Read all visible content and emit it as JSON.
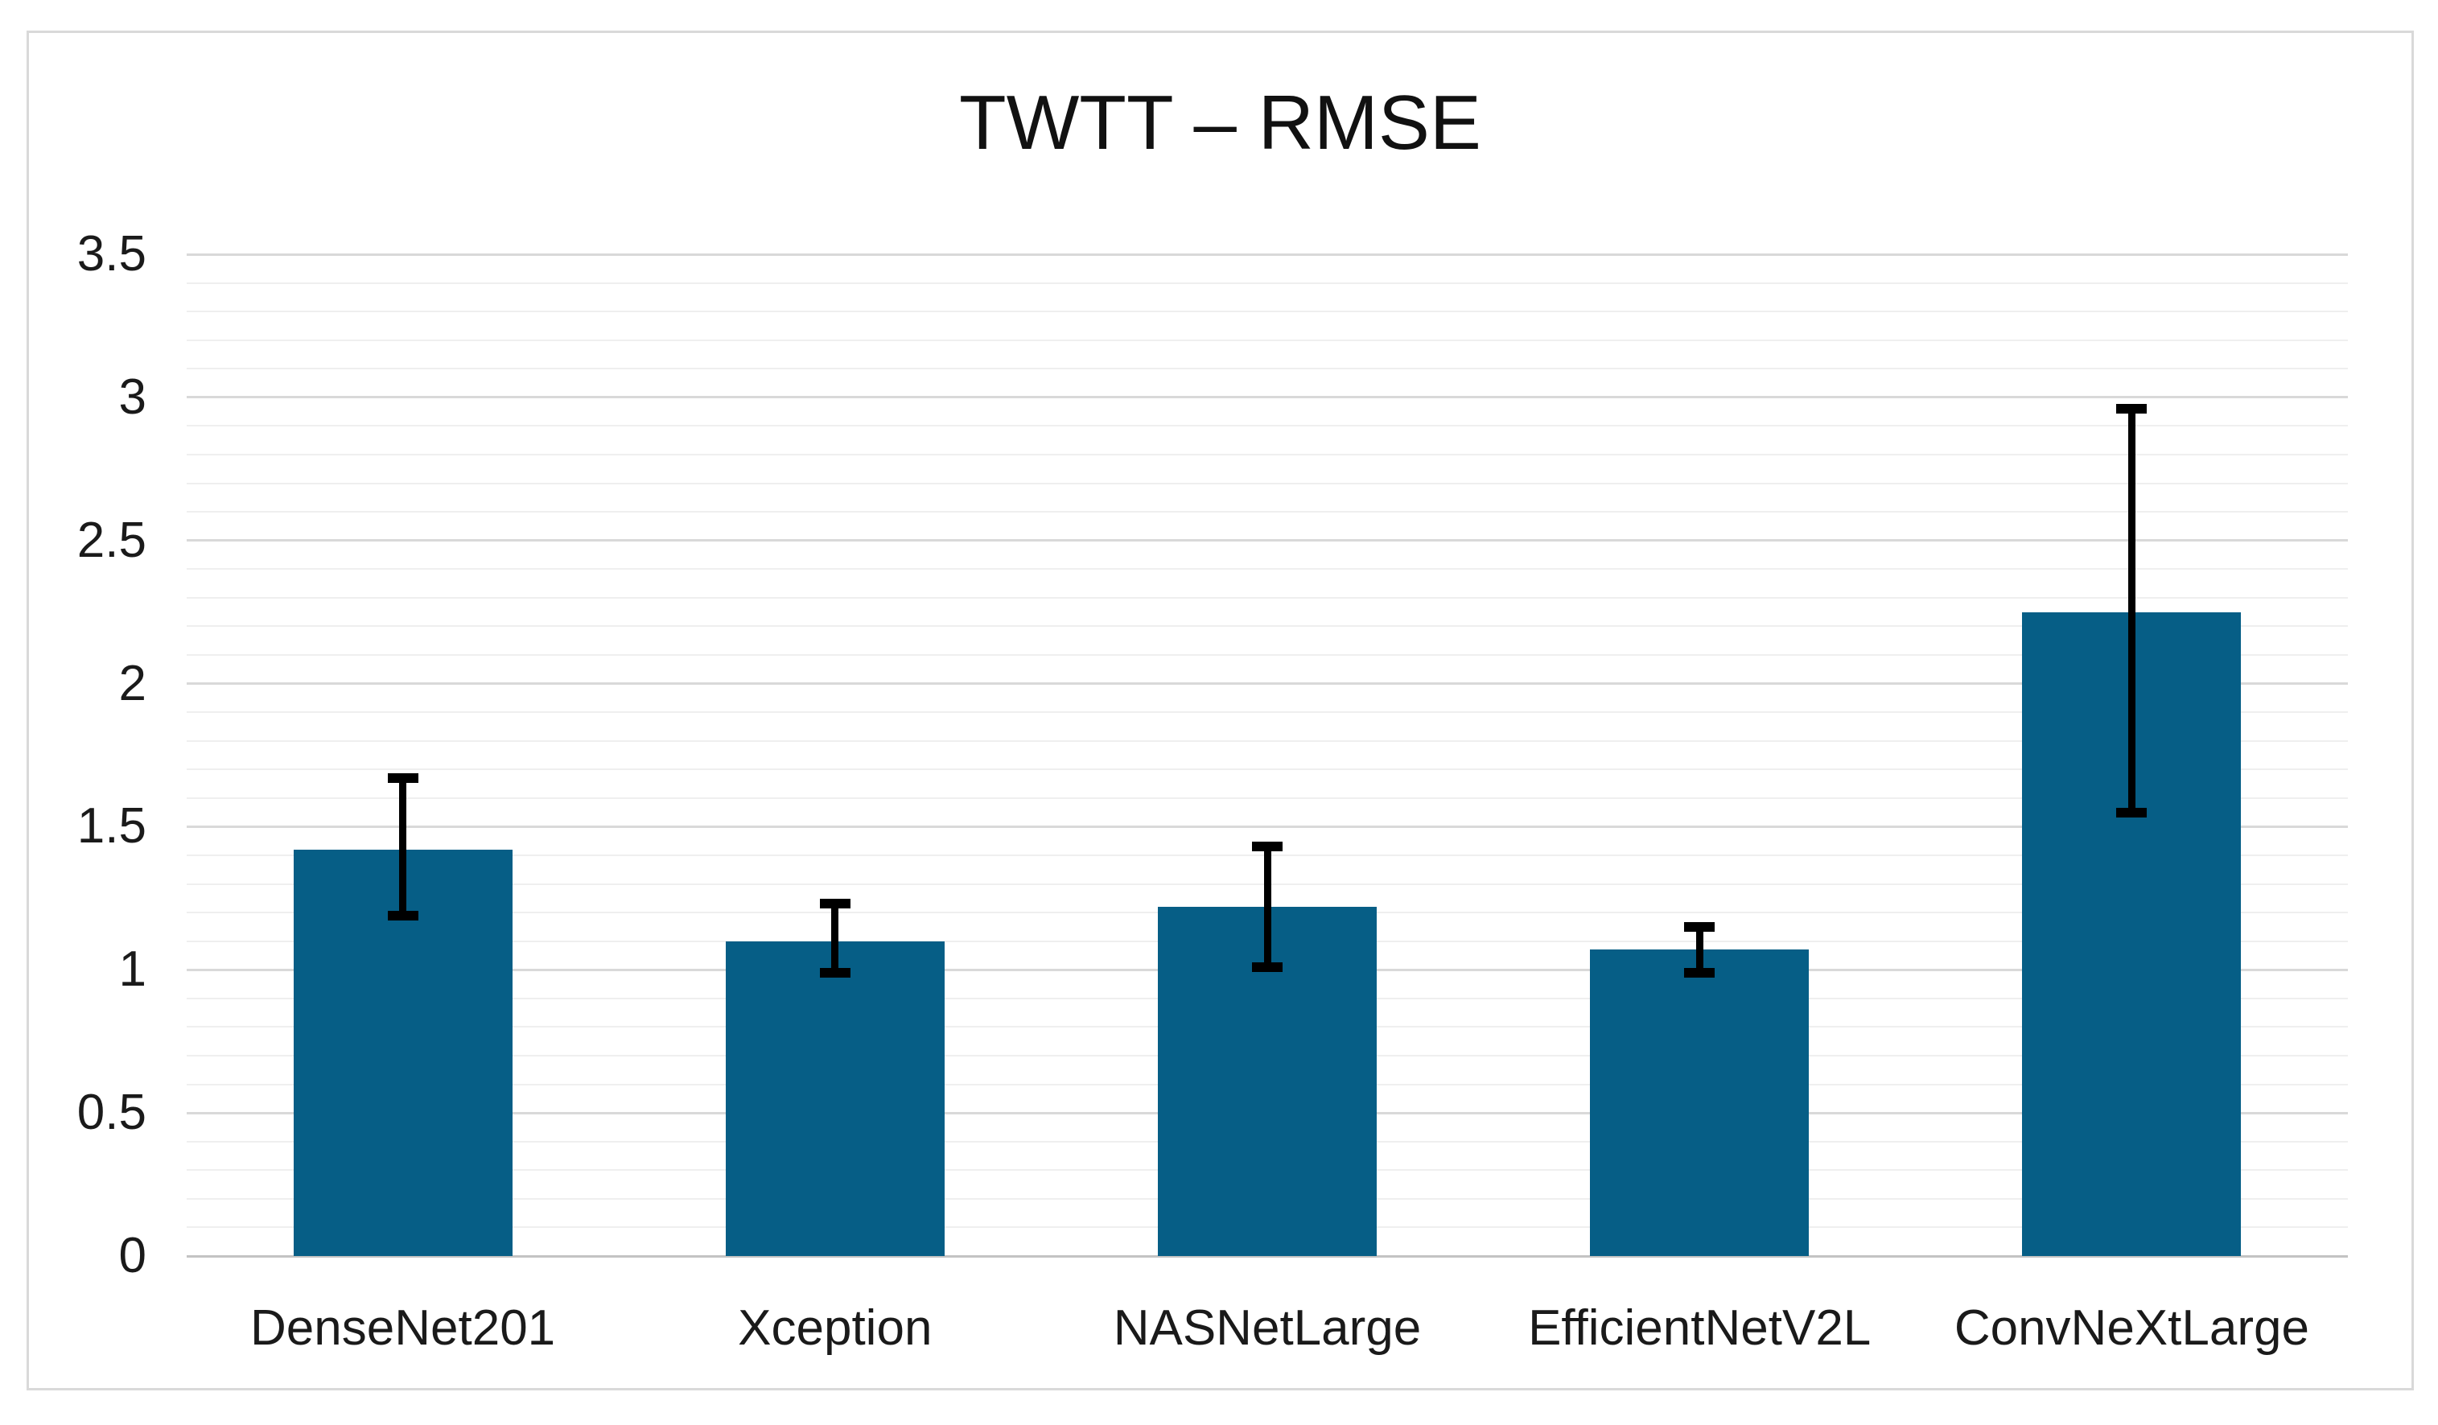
{
  "chart": {
    "title": "TWTT – RMSE"
  },
  "chart_data": {
    "type": "bar",
    "title": "TWTT – RMSE",
    "xlabel": "",
    "ylabel": "",
    "categories": [
      "DenseNet201",
      "Xception",
      "NASNetLarge",
      "EfficientNetV2L",
      "ConvNeXtLarge"
    ],
    "series": [
      {
        "name": "RMSE",
        "values": [
          1.42,
          1.1,
          1.22,
          1.07,
          2.25
        ]
      }
    ],
    "error_bars": {
      "upper": [
        1.67,
        1.23,
        1.43,
        1.15,
        2.96
      ],
      "lower": [
        1.19,
        0.99,
        1.01,
        0.99,
        1.55
      ]
    },
    "ylim": [
      0,
      3.5
    ],
    "ytick_major_step": 0.5,
    "ytick_minor_step": 0.1,
    "ytick_labels": [
      "0",
      "0.5",
      "1",
      "1.5",
      "2",
      "2.5",
      "3",
      "3.5"
    ],
    "grid": "horizontal major+minor",
    "legend_position": "none",
    "colors": {
      "bar_fill": "#065E86",
      "error_bar": "#000000",
      "grid_major": "#d9d9d9",
      "grid_minor": "#efefef",
      "axis_baseline": "#c3c3c3",
      "frame_border": "#d9d9d9",
      "text": "#1a1a1a"
    }
  }
}
